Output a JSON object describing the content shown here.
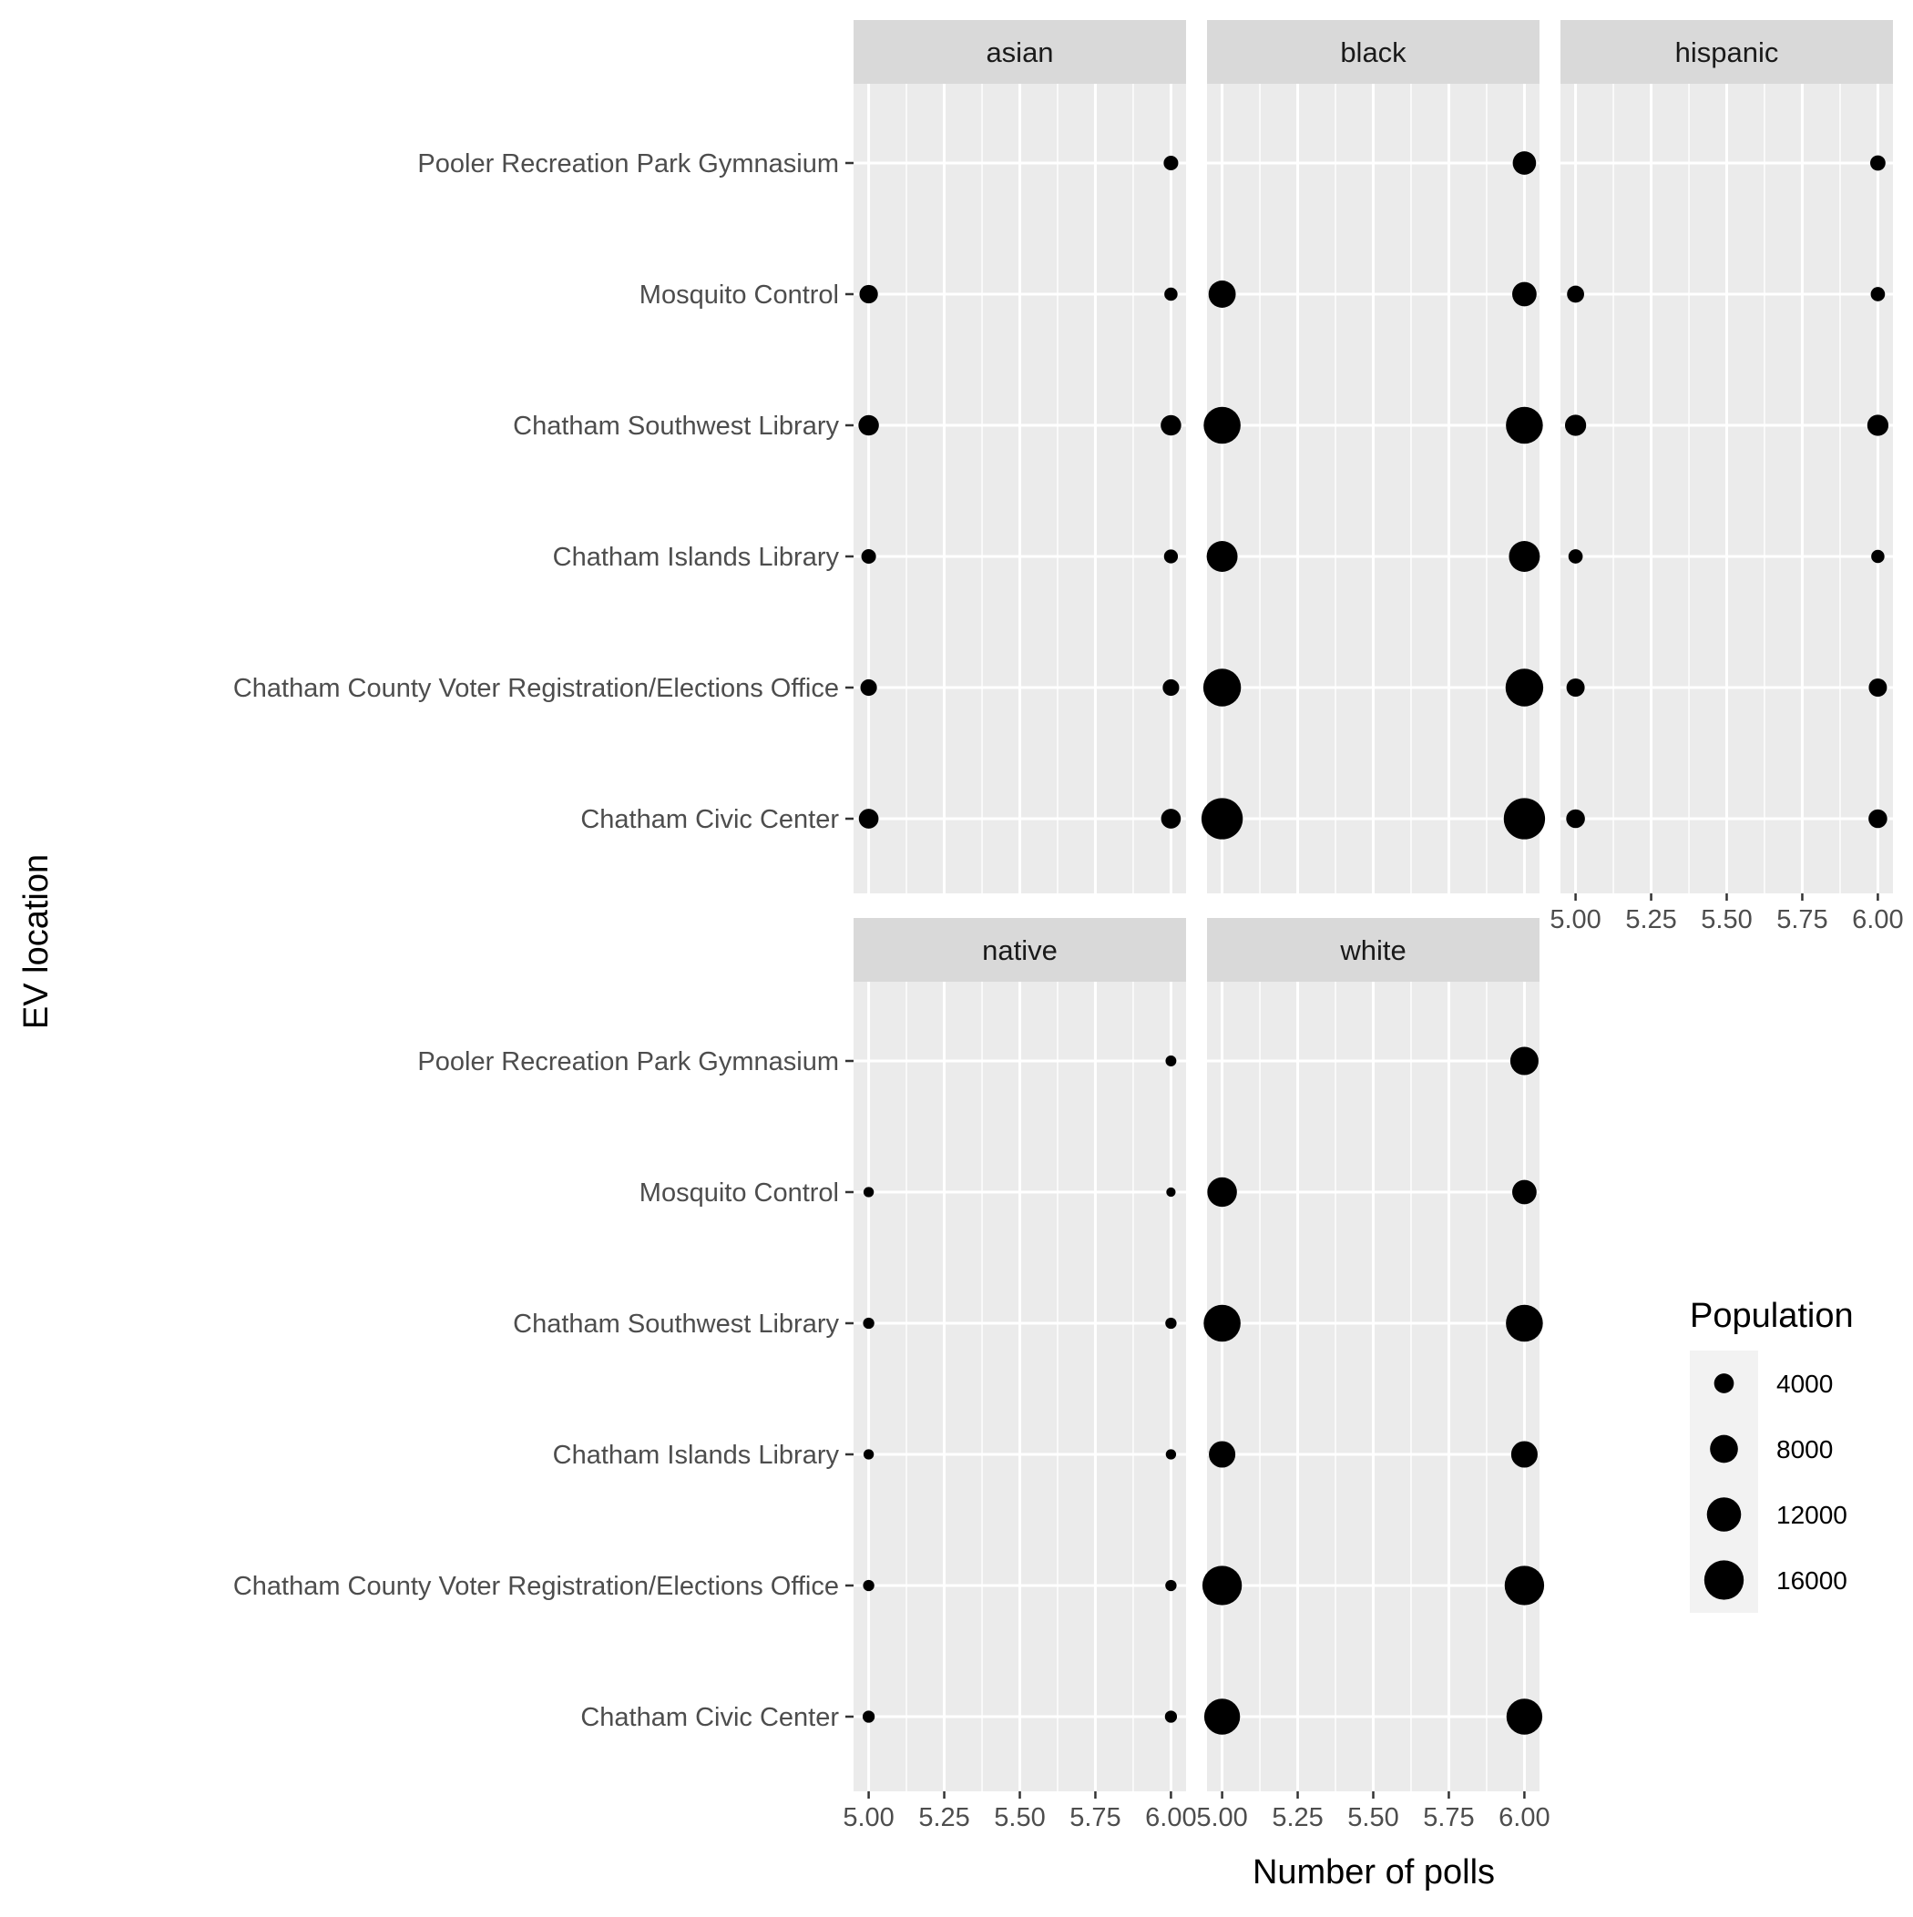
{
  "chart_data": {
    "type": "scatter",
    "xlabel": "Number of polls",
    "ylabel": "EV location",
    "xlim": [
      4.95,
      6.05
    ],
    "x_ticks": [
      5.0,
      5.25,
      5.5,
      5.75,
      6.0
    ],
    "x_tick_labels": [
      "5.00",
      "5.25",
      "5.50",
      "5.75",
      "6.00"
    ],
    "locations": [
      "Pooler Recreation Park Gymnasium",
      "Mosquito Control",
      "Chatham Southwest Library",
      "Chatham Islands Library",
      "Chatham County Voter Registration/Elections Office",
      "Chatham Civic Center"
    ],
    "size_legend": {
      "title": "Population",
      "breaks": [
        4000,
        8000,
        12000,
        16000
      ],
      "labels": [
        "4000",
        "8000",
        "12000",
        "16000"
      ]
    },
    "grid": true,
    "legend_position": "right",
    "point_color": "#000000",
    "panel_background": "#ebebeb",
    "strip_background": "#d9d9d9",
    "facets": [
      {
        "name": "asian",
        "points": [
          {
            "location": "Pooler Recreation Park Gymnasium",
            "x": 6,
            "population": 2200
          },
          {
            "location": "Mosquito Control",
            "x": 5,
            "population": 3500
          },
          {
            "location": "Mosquito Control",
            "x": 6,
            "population": 1800
          },
          {
            "location": "Chatham Southwest Library",
            "x": 5,
            "population": 4300
          },
          {
            "location": "Chatham Southwest Library",
            "x": 6,
            "population": 4300
          },
          {
            "location": "Chatham Islands Library",
            "x": 5,
            "population": 2200
          },
          {
            "location": "Chatham Islands Library",
            "x": 6,
            "population": 2000
          },
          {
            "location": "Chatham County Voter Registration/Elections Office",
            "x": 5,
            "population": 2800
          },
          {
            "location": "Chatham County Voter Registration/Elections Office",
            "x": 6,
            "population": 2800
          },
          {
            "location": "Chatham Civic Center",
            "x": 5,
            "population": 4000
          },
          {
            "location": "Chatham Civic Center",
            "x": 6,
            "population": 4000
          }
        ]
      },
      {
        "name": "black",
        "points": [
          {
            "location": "Pooler Recreation Park Gymnasium",
            "x": 6,
            "population": 5600
          },
          {
            "location": "Mosquito Control",
            "x": 5,
            "population": 7600
          },
          {
            "location": "Mosquito Control",
            "x": 6,
            "population": 6100
          },
          {
            "location": "Chatham Southwest Library",
            "x": 5,
            "population": 14000
          },
          {
            "location": "Chatham Southwest Library",
            "x": 6,
            "population": 14000
          },
          {
            "location": "Chatham Islands Library",
            "x": 5,
            "population": 9800
          },
          {
            "location": "Chatham Islands Library",
            "x": 6,
            "population": 9800
          },
          {
            "location": "Chatham County Voter Registration/Elections Office",
            "x": 5,
            "population": 14600
          },
          {
            "location": "Chatham County Voter Registration/Elections Office",
            "x": 6,
            "population": 14600
          },
          {
            "location": "Chatham Civic Center",
            "x": 5,
            "population": 17500
          },
          {
            "location": "Chatham Civic Center",
            "x": 6,
            "population": 17500
          }
        ]
      },
      {
        "name": "hispanic",
        "points": [
          {
            "location": "Pooler Recreation Park Gymnasium",
            "x": 6,
            "population": 2400
          },
          {
            "location": "Mosquito Control",
            "x": 5,
            "population": 3000
          },
          {
            "location": "Mosquito Control",
            "x": 6,
            "population": 2100
          },
          {
            "location": "Chatham Southwest Library",
            "x": 5,
            "population": 4600
          },
          {
            "location": "Chatham Southwest Library",
            "x": 6,
            "population": 4600
          },
          {
            "location": "Chatham Islands Library",
            "x": 5,
            "population": 2100
          },
          {
            "location": "Chatham Islands Library",
            "x": 6,
            "population": 1800
          },
          {
            "location": "Chatham County Voter Registration/Elections Office",
            "x": 5,
            "population": 3400
          },
          {
            "location": "Chatham County Voter Registration/Elections Office",
            "x": 6,
            "population": 3400
          },
          {
            "location": "Chatham Civic Center",
            "x": 5,
            "population": 3600
          },
          {
            "location": "Chatham Civic Center",
            "x": 6,
            "population": 3600
          }
        ]
      },
      {
        "name": "native",
        "points": [
          {
            "location": "Pooler Recreation Park Gymnasium",
            "x": 6,
            "population": 1200
          },
          {
            "location": "Mosquito Control",
            "x": 5,
            "population": 1100
          },
          {
            "location": "Mosquito Control",
            "x": 6,
            "population": 900
          },
          {
            "location": "Chatham Southwest Library",
            "x": 5,
            "population": 1300
          },
          {
            "location": "Chatham Southwest Library",
            "x": 6,
            "population": 1300
          },
          {
            "location": "Chatham Islands Library",
            "x": 5,
            "population": 1100
          },
          {
            "location": "Chatham Islands Library",
            "x": 6,
            "population": 1100
          },
          {
            "location": "Chatham County Voter Registration/Elections Office",
            "x": 5,
            "population": 1300
          },
          {
            "location": "Chatham County Voter Registration/Elections Office",
            "x": 6,
            "population": 1300
          },
          {
            "location": "Chatham Civic Center",
            "x": 5,
            "population": 1500
          },
          {
            "location": "Chatham Civic Center",
            "x": 6,
            "population": 1500
          }
        ]
      },
      {
        "name": "white",
        "points": [
          {
            "location": "Pooler Recreation Park Gymnasium",
            "x": 6,
            "population": 8200
          },
          {
            "location": "Mosquito Control",
            "x": 5,
            "population": 9000
          },
          {
            "location": "Mosquito Control",
            "x": 6,
            "population": 6100
          },
          {
            "location": "Chatham Southwest Library",
            "x": 5,
            "population": 14000
          },
          {
            "location": "Chatham Southwest Library",
            "x": 6,
            "population": 14000
          },
          {
            "location": "Chatham Islands Library",
            "x": 5,
            "population": 7200
          },
          {
            "location": "Chatham Islands Library",
            "x": 6,
            "population": 7200
          },
          {
            "location": "Chatham County Voter Registration/Elections Office",
            "x": 5,
            "population": 16000
          },
          {
            "location": "Chatham County Voter Registration/Elections Office",
            "x": 6,
            "population": 16000
          },
          {
            "location": "Chatham Civic Center",
            "x": 5,
            "population": 13200
          },
          {
            "location": "Chatham Civic Center",
            "x": 6,
            "population": 13200
          }
        ]
      }
    ]
  }
}
